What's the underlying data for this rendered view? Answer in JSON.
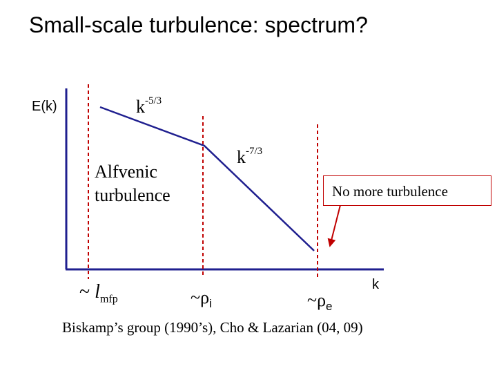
{
  "title": "Small-scale turbulence: spectrum?",
  "y_axis_label": "E(k)",
  "x_axis_label": "k",
  "slope_inertial_base": "k",
  "slope_inertial_exp": "-5/3",
  "slope_kinetic_base": "k",
  "slope_kinetic_exp": "-7/3",
  "alfvenic_line1": "Alfvenic",
  "alfvenic_line2": "turbulence",
  "callout_text": "No more turbulence",
  "marker_mfp_prefix": "~ ",
  "marker_mfp_symbol": "l",
  "marker_mfp_sub": "mfp",
  "marker_rhoi_prefix": "~ρ",
  "marker_rhoi_sub": "i",
  "marker_rhoe_prefix": "~ρ",
  "marker_rhoe_sub": "e",
  "credit": "Biskamp’s group (1990’s), Cho & Lazarian (04, 09)",
  "colors": {
    "axes": "#1f1f8f",
    "spectrum": "#1f1f8f",
    "dashed_markers": "#c00000",
    "arrow": "#c00000"
  }
}
